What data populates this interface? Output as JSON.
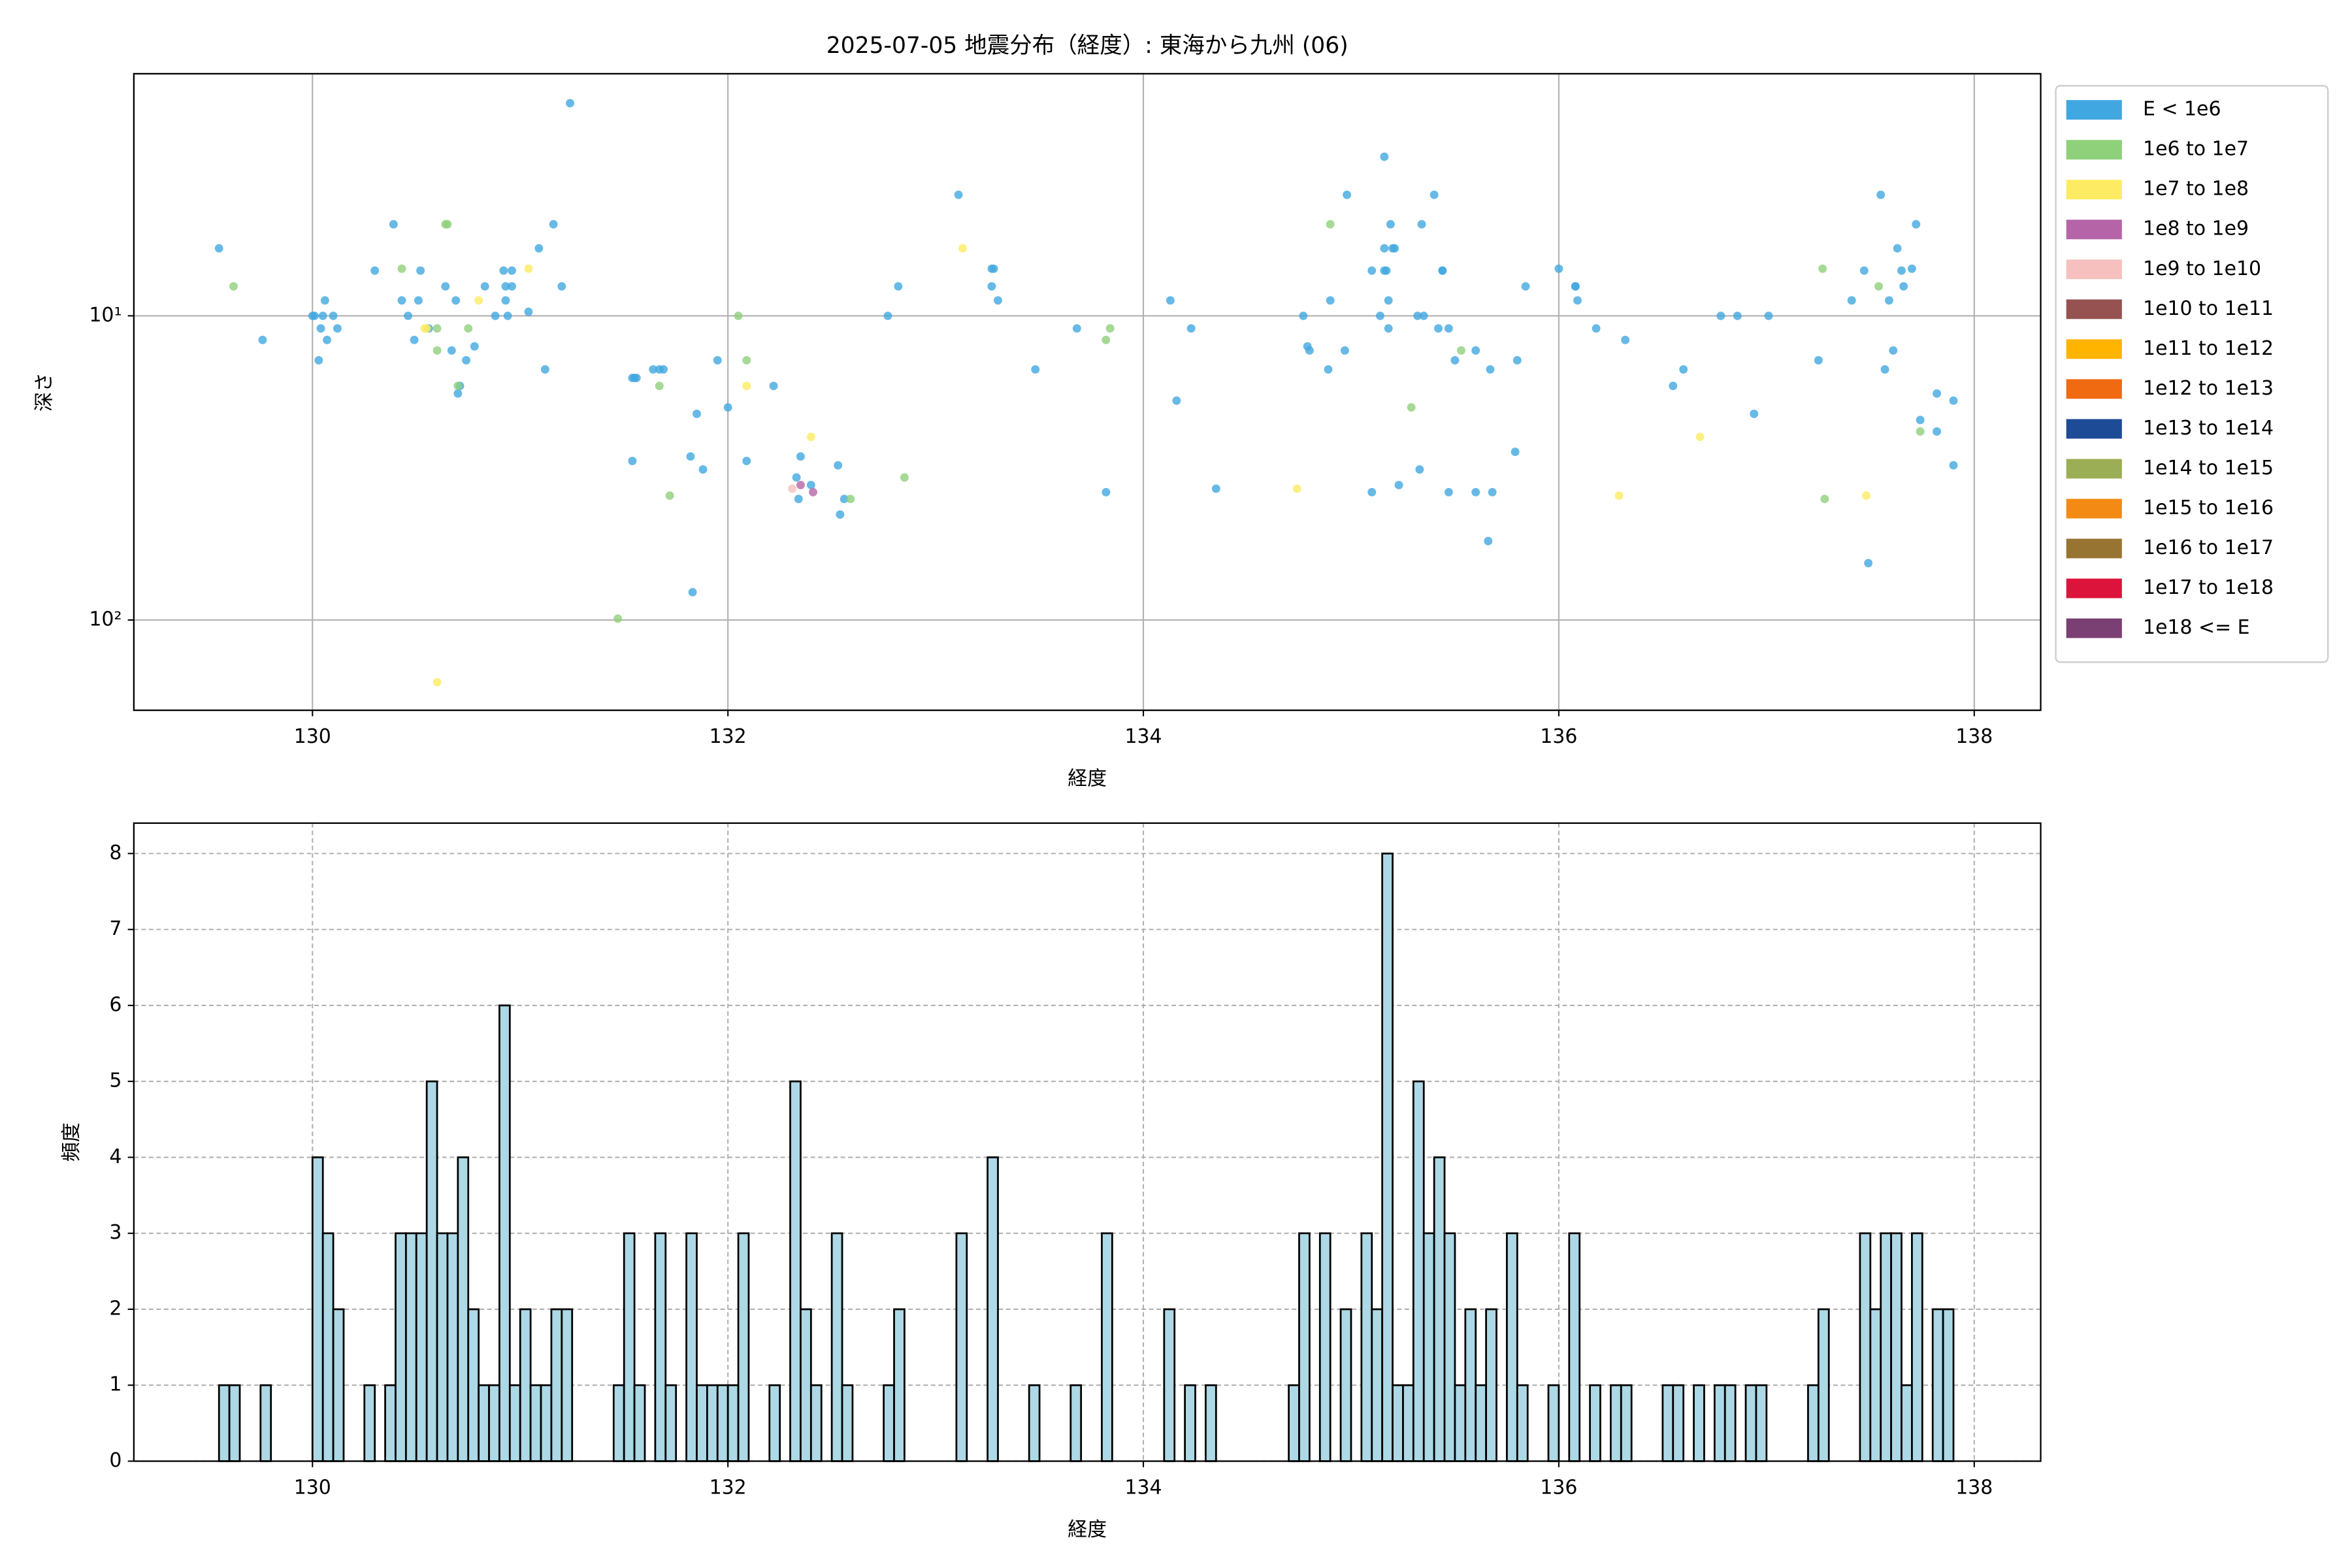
{
  "chart_data": [
    {
      "type": "scatter",
      "title": "2025-07-05 地震分布（経度）: 東海から九州 (06)",
      "x_label": "経度",
      "y_label": "深さ",
      "xlim": [
        129.14,
        138.32
      ],
      "xticks": [
        130,
        132,
        134,
        136,
        138
      ],
      "ylim": [
        198,
        1.6
      ],
      "yscale": "log",
      "yticks": [
        {
          "value": 10,
          "label": "10¹"
        },
        {
          "value": 100,
          "label": "10²"
        }
      ],
      "grid": true,
      "grid_style": "solid",
      "legend": "outside upper right",
      "series": [
        {
          "name": "E < 1e6",
          "color": "#41a7e0",
          "x": [
            129.55,
            129.76,
            130.0,
            130.03,
            130.04,
            130.06,
            130.07,
            130.1,
            130.12,
            130.05,
            130.01,
            130.3,
            130.39,
            130.43,
            130.46,
            130.49,
            130.51,
            130.52,
            130.56,
            130.64,
            130.67,
            130.69,
            130.7,
            130.71,
            130.74,
            130.78,
            130.83,
            130.88,
            130.92,
            130.93,
            130.94,
            130.96,
            130.96,
            130.93,
            131.04,
            131.09,
            131.12,
            131.16,
            131.2,
            131.24,
            131.54,
            131.55,
            131.56,
            131.64,
            131.67,
            131.69,
            131.54,
            131.82,
            131.85,
            131.88,
            131.83,
            131.95,
            132.0,
            132.09,
            132.22,
            132.33,
            132.34,
            132.35,
            132.4,
            132.53,
            132.54,
            132.56,
            132.82,
            132.77,
            133.11,
            133.27,
            133.27,
            133.28,
            133.3,
            133.48,
            133.68,
            133.82,
            134.13,
            134.16,
            134.23,
            134.35,
            134.77,
            134.79,
            134.8,
            134.89,
            134.9,
            134.98,
            134.97,
            135.1,
            135.14,
            135.16,
            135.16,
            135.18,
            135.18,
            135.19,
            135.2,
            135.21,
            135.23,
            135.1,
            135.16,
            135.17,
            135.32,
            135.34,
            135.35,
            135.33,
            135.4,
            135.42,
            135.44,
            135.44,
            135.47,
            135.47,
            135.5,
            135.6,
            135.6,
            135.66,
            135.67,
            135.68,
            135.79,
            135.8,
            135.84,
            136.0,
            136.08,
            136.08,
            136.09,
            136.18,
            136.32,
            136.55,
            136.6,
            136.78,
            136.86,
            136.94,
            137.01,
            137.25,
            137.41,
            137.47,
            137.49,
            137.55,
            137.57,
            137.59,
            137.61,
            137.63,
            137.65,
            137.66,
            137.7,
            137.72,
            137.74,
            137.82,
            137.82,
            137.9,
            137.9
          ],
          "values": [
            6.0,
            12,
            10,
            14,
            11,
            8.9,
            12,
            10,
            11,
            10,
            10,
            7.1,
            5.0,
            8.9,
            10,
            12,
            8.9,
            7.1,
            11,
            8.0,
            13,
            8.9,
            18,
            17,
            14,
            12.6,
            8.0,
            10,
            7.1,
            8.0,
            10,
            8.0,
            7.1,
            8.9,
            9.7,
            6.0,
            15,
            5.0,
            8.0,
            2.0,
            16,
            16,
            16,
            15,
            15,
            15,
            30,
            29,
            21,
            32,
            81,
            14,
            20,
            30,
            17,
            34,
            40,
            29,
            36,
            31,
            45,
            40,
            8.0,
            10,
            4.0,
            7.0,
            8.0,
            7.0,
            8.9,
            15,
            11,
            38,
            8.9,
            19,
            11,
            37,
            10,
            12.6,
            13,
            15,
            8.9,
            4.0,
            13,
            38,
            10,
            6.0,
            3.0,
            8.9,
            11,
            5.0,
            6.0,
            6.0,
            36,
            7.1,
            7.1,
            7.1,
            10,
            5.0,
            10,
            32,
            4.0,
            11,
            7.1,
            7.1,
            11,
            38,
            14,
            13,
            38,
            55,
            15,
            38,
            28,
            14,
            8.0,
            7.0,
            8.0,
            8.0,
            8.9,
            11,
            12,
            17,
            15,
            10,
            10,
            21,
            10,
            14,
            8.9,
            7.1,
            65,
            4.0,
            15,
            8.9,
            13,
            6.0,
            7.1,
            8.0,
            7.0,
            5.0,
            22,
            18,
            24,
            19,
            31
          ]
        },
        {
          "name": "1e6 to 1e7",
          "color": "#8fd07a",
          "x": [
            129.62,
            130.43,
            130.64,
            130.65,
            130.6,
            130.6,
            130.75,
            130.7,
            131.67,
            131.72,
            132.05,
            132.09,
            132.59,
            132.85,
            133.84,
            133.82,
            134.9,
            135.29,
            135.53,
            131.47,
            137.27,
            137.28,
            137.54,
            137.74
          ],
          "values": [
            8.0,
            7.0,
            5.0,
            5.0,
            11,
            13,
            11,
            17,
            17,
            39,
            10,
            14,
            40,
            34,
            11,
            12,
            5.0,
            20,
            13,
            99,
            7.0,
            40,
            8.0,
            24
          ]
        },
        {
          "name": "1e7 to 1e8",
          "color": "#fdeb63",
          "x": [
            130.54,
            130.8,
            131.04,
            130.6,
            132.09,
            132.4,
            133.13,
            134.74,
            136.29,
            136.68,
            137.48,
            130.55
          ],
          "values": [
            11,
            8.9,
            7.0,
            160,
            17,
            25,
            6.0,
            37,
            39,
            25,
            39,
            11
          ]
        },
        {
          "name": "1e8 to 1e9",
          "color": "#b565a7",
          "x": [
            132.35,
            132.41
          ],
          "values": [
            36,
            38
          ]
        },
        {
          "name": "1e9 to 1e10",
          "color": "#f5c0bd",
          "x": [
            132.31
          ],
          "values": [
            37
          ]
        },
        {
          "name": "1e10 to 1e11",
          "color": "#955251",
          "x": [],
          "values": []
        },
        {
          "name": "1e11 to 1e12",
          "color": "#ffb400",
          "x": [],
          "values": []
        },
        {
          "name": "1e12 to 1e13",
          "color": "#ef6a11",
          "x": [],
          "values": []
        },
        {
          "name": "1e13 to 1e14",
          "color": "#1e4b96",
          "x": [],
          "values": []
        },
        {
          "name": "1e14 to 1e15",
          "color": "#9cae55",
          "x": [],
          "values": []
        },
        {
          "name": "1e15 to 1e16",
          "color": "#f28a13",
          "x": [],
          "values": []
        },
        {
          "name": "1e16 to 1e17",
          "color": "#987433",
          "x": [],
          "values": []
        },
        {
          "name": "1e17 to 1e18",
          "color": "#dc143c",
          "x": [],
          "values": []
        },
        {
          "name": "1e18 <= E",
          "color": "#7a3f73",
          "x": [],
          "values": []
        }
      ]
    },
    {
      "type": "histogram",
      "x_label": "経度",
      "y_label": "頻度",
      "color": "#add8e6",
      "edgecolor": "#000000",
      "xlim": [
        129.14,
        138.32
      ],
      "xticks": [
        130,
        132,
        134,
        136,
        138
      ],
      "ylim": [
        0,
        8.4
      ],
      "yticks": [
        0,
        1,
        2,
        3,
        4,
        5,
        6,
        7,
        8
      ],
      "grid": true,
      "grid_style": "dashed",
      "bins": [
        129.55,
        129.6,
        129.65,
        129.7,
        129.75,
        129.8,
        129.85,
        129.9,
        129.95,
        130,
        130.05,
        130.1,
        130.15,
        130.2,
        130.25,
        130.3,
        130.35,
        130.4,
        130.45,
        130.5,
        130.55,
        130.6,
        130.65,
        130.7,
        130.75,
        130.8,
        130.85,
        130.9,
        130.95,
        131,
        131.05,
        131.1,
        131.15,
        131.2,
        131.25,
        131.3,
        131.35,
        131.4,
        131.45,
        131.5,
        131.55,
        131.6,
        131.65,
        131.7,
        131.75,
        131.8,
        131.85,
        131.9,
        131.95,
        132,
        132.05,
        132.1,
        132.15,
        132.2,
        132.25,
        132.3,
        132.35,
        132.4,
        132.45,
        132.5,
        132.55,
        132.6,
        132.65,
        132.7,
        132.75,
        132.8,
        132.85,
        132.9,
        132.95,
        133,
        133.05,
        133.1,
        133.15,
        133.2,
        133.25,
        133.3,
        133.35,
        133.4,
        133.45,
        133.5,
        133.55,
        133.6,
        133.65,
        133.7,
        133.75,
        133.8,
        133.85,
        133.9,
        133.95,
        134,
        134.05,
        134.1,
        134.15,
        134.2,
        134.25,
        134.3,
        134.35,
        134.4,
        134.45,
        134.5,
        134.55,
        134.6,
        134.65,
        134.7,
        134.75,
        134.8,
        134.85,
        134.9,
        134.95,
        135,
        135.05,
        135.1,
        135.15,
        135.2,
        135.25,
        135.3,
        135.35,
        135.4,
        135.45,
        135.5,
        135.55,
        135.6,
        135.65,
        135.7,
        135.75,
        135.8,
        135.85,
        135.9,
        135.95,
        136,
        136.05,
        136.1,
        136.15,
        136.2,
        136.25,
        136.3,
        136.35,
        136.4,
        136.45,
        136.5,
        136.55,
        136.6,
        136.65,
        136.7,
        136.75,
        136.8,
        136.85,
        136.9,
        136.95,
        137,
        137.05,
        137.1,
        137.15,
        137.2,
        137.25,
        137.3,
        137.35,
        137.4,
        137.45,
        137.5,
        137.55,
        137.6,
        137.65,
        137.7,
        137.75,
        137.8,
        137.85,
        137.9
      ],
      "values": [
        1,
        1,
        0,
        0,
        1,
        0,
        0,
        0,
        0,
        4,
        3,
        2,
        0,
        0,
        1,
        0,
        1,
        3,
        3,
        3,
        5,
        3,
        3,
        4,
        2,
        1,
        1,
        6,
        1,
        2,
        1,
        1,
        2,
        2,
        0,
        0,
        0,
        0,
        1,
        3,
        1,
        0,
        3,
        1,
        0,
        3,
        1,
        1,
        1,
        1,
        3,
        0,
        0,
        1,
        0,
        5,
        2,
        1,
        0,
        3,
        1,
        0,
        0,
        0,
        1,
        2,
        0,
        0,
        0,
        0,
        0,
        3,
        0,
        0,
        4,
        0,
        0,
        0,
        1,
        0,
        0,
        0,
        1,
        0,
        0,
        3,
        0,
        0,
        0,
        0,
        0,
        2,
        0,
        1,
        0,
        1,
        0,
        0,
        0,
        0,
        0,
        0,
        0,
        1,
        3,
        0,
        3,
        0,
        2,
        0,
        3,
        2,
        8,
        1,
        1,
        5,
        3,
        4,
        3,
        1,
        2,
        1,
        2,
        0,
        3,
        1,
        0,
        0,
        1,
        0,
        3,
        0,
        1,
        0,
        1,
        1,
        0,
        0,
        0,
        1,
        1,
        0,
        1,
        0,
        1,
        1,
        0,
        1,
        1,
        0,
        0,
        0,
        0,
        1,
        2,
        0,
        0,
        0,
        3,
        2,
        3,
        3,
        1,
        3,
        0,
        2,
        2
      ]
    }
  ]
}
